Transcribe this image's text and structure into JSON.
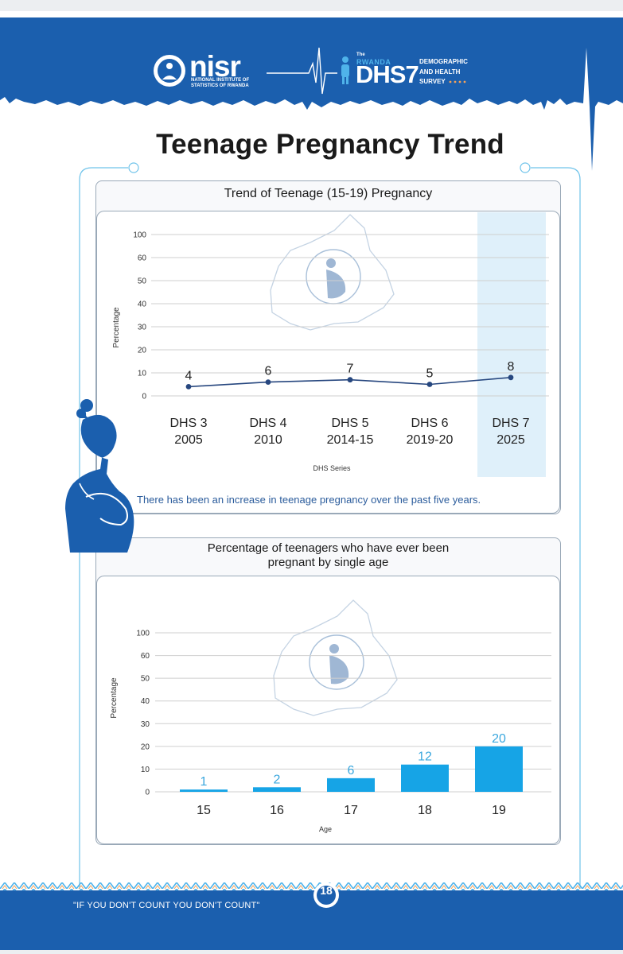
{
  "header": {
    "nisr_logo_text": "nisr",
    "nisr_subtitle_line1": "NATIONAL INSTITUTE OF",
    "nisr_subtitle_line2": "STATISTICS OF RWANDA",
    "dhs_the": "The",
    "dhs_rwanda": "RWANDA",
    "dhs_name": "DHS7",
    "dhs_line1": "DEMOGRAPHIC",
    "dhs_line2": "AND HEALTH",
    "dhs_line3": "SURVEY"
  },
  "page_title": "Teenage Pregnancy Trend",
  "colors": {
    "brand_blue": "#1b5fae",
    "line_series": "#27477f",
    "bar_series": "#16a4e6",
    "highlight": "#dff0fa"
  },
  "chart_data": [
    {
      "type": "line",
      "title": "Trend of Teenage (15-19) Pregnancy",
      "categories": [
        "DHS 3\n2005",
        "DHS 4\n2010",
        "DHS 5\n2014-15",
        "DHS 6\n2019-20",
        "DHS 7\n2025"
      ],
      "category_lines": [
        [
          "DHS 3",
          "2005"
        ],
        [
          "DHS 4",
          "2010"
        ],
        [
          "DHS 5",
          "2014-15"
        ],
        [
          "DHS 6",
          "2019-20"
        ],
        [
          "DHS 7",
          "2025"
        ]
      ],
      "values": [
        4,
        6,
        7,
        5,
        8
      ],
      "y_ticks": [
        0,
        10,
        20,
        30,
        40,
        50,
        60,
        100
      ],
      "ylim": [
        0,
        100
      ],
      "xlabel": "DHS Series",
      "ylabel": "Percentage",
      "highlighted_category": "DHS 7\n2025",
      "grid": true,
      "caption": "There has been an increase in teenage pregnancy over the past five years."
    },
    {
      "type": "bar",
      "title": "Percentage of teenagers who have ever been pregnant by single age",
      "title_lines": [
        "Percentage of teenagers who have ever been",
        "pregnant by single age"
      ],
      "categories": [
        "15",
        "16",
        "17",
        "18",
        "19"
      ],
      "values": [
        1,
        2,
        6,
        12,
        20
      ],
      "y_ticks": [
        0,
        10,
        20,
        30,
        40,
        50,
        60,
        100
      ],
      "ylim": [
        0,
        100
      ],
      "xlabel": "Age",
      "ylabel": "Percentage",
      "grid": true
    }
  ],
  "footer": {
    "slogan": "\"IF YOU DON'T COUNT YOU DON'T COUNT\"",
    "page_number": "18"
  }
}
